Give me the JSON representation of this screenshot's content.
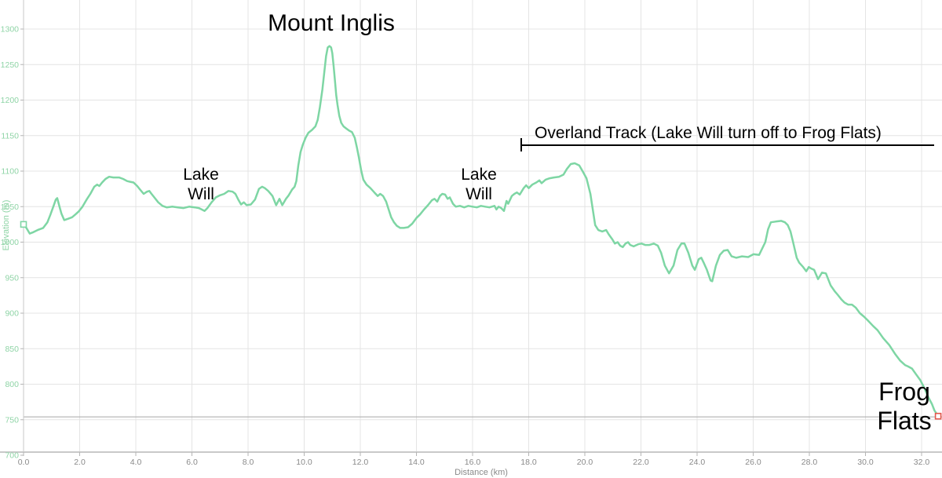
{
  "chart_data": {
    "type": "line",
    "title": "",
    "xlabel": "Distance (km)",
    "ylabel": "Elevation (m)",
    "xlim": [
      0,
      32.73
    ],
    "ylim": [
      700,
      1300
    ],
    "grid": true,
    "legend": false,
    "x_tick_values": [
      0,
      2,
      4,
      6,
      8,
      10,
      12,
      14,
      16,
      18,
      20,
      22,
      24,
      26,
      28,
      30,
      32
    ],
    "x_tick_labels": [
      "0.0",
      "2.0",
      "4.0",
      "6.0",
      "8.0",
      "10.0",
      "12.0",
      "14.0",
      "16.0",
      "18.0",
      "20.0",
      "22.0",
      "24.0",
      "26.0",
      "28.0",
      "30.0",
      "32.0"
    ],
    "y_tick_values": [
      700,
      750,
      800,
      850,
      900,
      950,
      1000,
      1050,
      1100,
      1150,
      1200,
      1250,
      1300
    ],
    "y_tick_labels": [
      "700",
      "750",
      "800",
      "850",
      "900",
      "950",
      "1000",
      "1050",
      "1100",
      "1150",
      "1200",
      "1250",
      "1300"
    ],
    "reference_line_elevation_m": 754,
    "colors": {
      "line": "#7ed6a4",
      "y_axis_text": "#8fd4a6",
      "x_axis_text": "#8a8a8a",
      "grid": "#e4e4e4",
      "axis": "#c9c9c9",
      "tick": "#b5b5b5",
      "reference_line": "#a8a8a8",
      "start_marker": "#7ed6a4",
      "end_marker": "#e2574c",
      "annotation_text": "#000000"
    },
    "annotations": {
      "mount_inglis": {
        "text": "Mount Inglis"
      },
      "lake_will_1": {
        "lines": [
          "Lake",
          "Will"
        ]
      },
      "lake_will_2": {
        "lines": [
          "Lake",
          "Will"
        ]
      },
      "overland": {
        "text": "Overland Track (Lake Will turn off to Frog Flats)"
      },
      "frog_flats": {
        "lines": [
          "Frog",
          "Flats"
        ]
      }
    },
    "markers": {
      "start": {
        "km": 0.0,
        "elevation_m": 1025
      },
      "end": {
        "km": 32.59,
        "elevation_m": 755
      }
    },
    "series": [
      {
        "name": "elevation_profile",
        "color": "#7ed6a4",
        "points": [
          [
            0.0,
            1025
          ],
          [
            0.1,
            1020
          ],
          [
            0.22,
            1012
          ],
          [
            0.35,
            1014
          ],
          [
            0.5,
            1017
          ],
          [
            0.7,
            1020
          ],
          [
            0.85,
            1028
          ],
          [
            0.95,
            1038
          ],
          [
            1.06,
            1050
          ],
          [
            1.15,
            1060
          ],
          [
            1.2,
            1062
          ],
          [
            1.28,
            1050
          ],
          [
            1.35,
            1040
          ],
          [
            1.45,
            1031
          ],
          [
            1.6,
            1033
          ],
          [
            1.73,
            1035
          ],
          [
            1.85,
            1039
          ],
          [
            1.96,
            1043
          ],
          [
            2.1,
            1050
          ],
          [
            2.25,
            1060
          ],
          [
            2.38,
            1068
          ],
          [
            2.52,
            1078
          ],
          [
            2.62,
            1081
          ],
          [
            2.7,
            1079
          ],
          [
            2.8,
            1084
          ],
          [
            2.92,
            1089
          ],
          [
            3.05,
            1092
          ],
          [
            3.2,
            1091
          ],
          [
            3.4,
            1091
          ],
          [
            3.55,
            1089
          ],
          [
            3.69,
            1086
          ],
          [
            3.8,
            1085
          ],
          [
            3.92,
            1084
          ],
          [
            4.05,
            1079
          ],
          [
            4.15,
            1074
          ],
          [
            4.28,
            1068
          ],
          [
            4.4,
            1071
          ],
          [
            4.48,
            1072
          ],
          [
            4.56,
            1068
          ],
          [
            4.68,
            1062
          ],
          [
            4.8,
            1056
          ],
          [
            4.95,
            1051
          ],
          [
            5.1,
            1049
          ],
          [
            5.3,
            1050
          ],
          [
            5.5,
            1049
          ],
          [
            5.7,
            1048
          ],
          [
            5.9,
            1050
          ],
          [
            6.1,
            1049
          ],
          [
            6.25,
            1048
          ],
          [
            6.35,
            1046
          ],
          [
            6.45,
            1044
          ],
          [
            6.55,
            1048
          ],
          [
            6.7,
            1056
          ],
          [
            6.85,
            1063
          ],
          [
            7.0,
            1066
          ],
          [
            7.15,
            1068
          ],
          [
            7.3,
            1072
          ],
          [
            7.45,
            1071
          ],
          [
            7.55,
            1068
          ],
          [
            7.65,
            1060
          ],
          [
            7.75,
            1053
          ],
          [
            7.85,
            1056
          ],
          [
            7.95,
            1052
          ],
          [
            8.1,
            1053
          ],
          [
            8.25,
            1060
          ],
          [
            8.39,
            1075
          ],
          [
            8.5,
            1078
          ],
          [
            8.6,
            1076
          ],
          [
            8.72,
            1072
          ],
          [
            8.87,
            1065
          ],
          [
            9.0,
            1052
          ],
          [
            9.12,
            1061
          ],
          [
            9.22,
            1052
          ],
          [
            9.35,
            1061
          ],
          [
            9.45,
            1066
          ],
          [
            9.57,
            1074
          ],
          [
            9.66,
            1078
          ],
          [
            9.72,
            1086
          ],
          [
            9.79,
            1108
          ],
          [
            9.87,
            1127
          ],
          [
            9.95,
            1137
          ],
          [
            10.05,
            1147
          ],
          [
            10.15,
            1154
          ],
          [
            10.28,
            1158
          ],
          [
            10.4,
            1163
          ],
          [
            10.48,
            1172
          ],
          [
            10.56,
            1190
          ],
          [
            10.65,
            1215
          ],
          [
            10.72,
            1240
          ],
          [
            10.78,
            1262
          ],
          [
            10.84,
            1274
          ],
          [
            10.9,
            1276
          ],
          [
            10.96,
            1274
          ],
          [
            11.0,
            1266
          ],
          [
            11.05,
            1248
          ],
          [
            11.1,
            1226
          ],
          [
            11.14,
            1207
          ],
          [
            11.19,
            1193
          ],
          [
            11.25,
            1178
          ],
          [
            11.32,
            1168
          ],
          [
            11.4,
            1163
          ],
          [
            11.5,
            1160
          ],
          [
            11.6,
            1157
          ],
          [
            11.7,
            1155
          ],
          [
            11.8,
            1147
          ],
          [
            11.88,
            1133
          ],
          [
            11.95,
            1119
          ],
          [
            12.03,
            1101
          ],
          [
            12.11,
            1088
          ],
          [
            12.22,
            1081
          ],
          [
            12.36,
            1076
          ],
          [
            12.5,
            1070
          ],
          [
            12.62,
            1065
          ],
          [
            12.71,
            1068
          ],
          [
            12.81,
            1065
          ],
          [
            12.92,
            1057
          ],
          [
            13.01,
            1046
          ],
          [
            13.1,
            1035
          ],
          [
            13.2,
            1028
          ],
          [
            13.3,
            1023
          ],
          [
            13.42,
            1020
          ],
          [
            13.55,
            1020
          ],
          [
            13.7,
            1021
          ],
          [
            13.85,
            1026
          ],
          [
            14.0,
            1034
          ],
          [
            14.13,
            1039
          ],
          [
            14.27,
            1046
          ],
          [
            14.41,
            1052
          ],
          [
            14.55,
            1059
          ],
          [
            14.64,
            1061
          ],
          [
            14.74,
            1057
          ],
          [
            14.84,
            1065
          ],
          [
            14.92,
            1068
          ],
          [
            15.02,
            1067
          ],
          [
            15.11,
            1061
          ],
          [
            15.19,
            1063
          ],
          [
            15.3,
            1054
          ],
          [
            15.4,
            1050
          ],
          [
            15.55,
            1051
          ],
          [
            15.7,
            1049
          ],
          [
            15.85,
            1051
          ],
          [
            16.0,
            1050
          ],
          [
            16.15,
            1049
          ],
          [
            16.3,
            1051
          ],
          [
            16.45,
            1050
          ],
          [
            16.6,
            1049
          ],
          [
            16.78,
            1051
          ],
          [
            16.85,
            1046
          ],
          [
            16.93,
            1050
          ],
          [
            17.02,
            1048
          ],
          [
            17.12,
            1044
          ],
          [
            17.21,
            1058
          ],
          [
            17.27,
            1054
          ],
          [
            17.4,
            1065
          ],
          [
            17.49,
            1068
          ],
          [
            17.58,
            1070
          ],
          [
            17.68,
            1067
          ],
          [
            17.82,
            1076
          ],
          [
            17.91,
            1080
          ],
          [
            18.0,
            1076
          ],
          [
            18.13,
            1081
          ],
          [
            18.27,
            1084
          ],
          [
            18.38,
            1087
          ],
          [
            18.46,
            1083
          ],
          [
            18.6,
            1088
          ],
          [
            18.75,
            1090
          ],
          [
            18.9,
            1091
          ],
          [
            19.08,
            1092
          ],
          [
            19.24,
            1095
          ],
          [
            19.36,
            1103
          ],
          [
            19.5,
            1110
          ],
          [
            19.64,
            1111
          ],
          [
            19.8,
            1108
          ],
          [
            19.92,
            1100
          ],
          [
            20.06,
            1090
          ],
          [
            20.2,
            1068
          ],
          [
            20.28,
            1047
          ],
          [
            20.37,
            1024
          ],
          [
            20.48,
            1017
          ],
          [
            20.62,
            1015
          ],
          [
            20.76,
            1017
          ],
          [
            20.85,
            1011
          ],
          [
            20.98,
            1004
          ],
          [
            21.07,
            998
          ],
          [
            21.17,
            1000
          ],
          [
            21.26,
            995
          ],
          [
            21.35,
            993
          ],
          [
            21.45,
            998
          ],
          [
            21.54,
            1000
          ],
          [
            21.62,
            996
          ],
          [
            21.74,
            994
          ],
          [
            21.9,
            997
          ],
          [
            22.02,
            998
          ],
          [
            22.15,
            996
          ],
          [
            22.3,
            996
          ],
          [
            22.46,
            998
          ],
          [
            22.6,
            995
          ],
          [
            22.72,
            985
          ],
          [
            22.85,
            967
          ],
          [
            23.0,
            956
          ],
          [
            23.16,
            967
          ],
          [
            23.3,
            989
          ],
          [
            23.44,
            998
          ],
          [
            23.55,
            998
          ],
          [
            23.69,
            985
          ],
          [
            23.83,
            967
          ],
          [
            23.92,
            961
          ],
          [
            24.06,
            976
          ],
          [
            24.15,
            978
          ],
          [
            24.25,
            970
          ],
          [
            24.35,
            961
          ],
          [
            24.48,
            946
          ],
          [
            24.54,
            945
          ],
          [
            24.67,
            967
          ],
          [
            24.81,
            982
          ],
          [
            24.95,
            988
          ],
          [
            25.09,
            989
          ],
          [
            25.23,
            980
          ],
          [
            25.4,
            978
          ],
          [
            25.6,
            980
          ],
          [
            25.82,
            979
          ],
          [
            26.01,
            983
          ],
          [
            26.21,
            982
          ],
          [
            26.43,
            1000
          ],
          [
            26.53,
            1018
          ],
          [
            26.63,
            1028
          ],
          [
            26.8,
            1029
          ],
          [
            27.0,
            1030
          ],
          [
            27.13,
            1028
          ],
          [
            27.23,
            1024
          ],
          [
            27.33,
            1015
          ],
          [
            27.42,
            1000
          ],
          [
            27.55,
            978
          ],
          [
            27.64,
            971
          ],
          [
            27.78,
            965
          ],
          [
            27.89,
            959
          ],
          [
            27.98,
            965
          ],
          [
            28.06,
            963
          ],
          [
            28.17,
            961
          ],
          [
            28.31,
            948
          ],
          [
            28.45,
            957
          ],
          [
            28.59,
            956
          ],
          [
            28.76,
            939
          ],
          [
            28.9,
            931
          ],
          [
            29.01,
            926
          ],
          [
            29.15,
            919
          ],
          [
            29.25,
            915
          ],
          [
            29.38,
            912
          ],
          [
            29.52,
            912
          ],
          [
            29.65,
            908
          ],
          [
            29.8,
            900
          ],
          [
            29.95,
            895
          ],
          [
            30.08,
            890
          ],
          [
            30.27,
            882
          ],
          [
            30.43,
            876
          ],
          [
            30.63,
            865
          ],
          [
            30.85,
            855
          ],
          [
            31.05,
            843
          ],
          [
            31.24,
            833
          ],
          [
            31.41,
            827
          ],
          [
            31.52,
            825
          ],
          [
            31.66,
            822
          ],
          [
            31.8,
            814
          ],
          [
            31.95,
            806
          ],
          [
            32.08,
            796
          ],
          [
            32.25,
            781
          ],
          [
            32.37,
            772
          ],
          [
            32.46,
            763
          ],
          [
            32.59,
            755
          ]
        ]
      }
    ]
  }
}
